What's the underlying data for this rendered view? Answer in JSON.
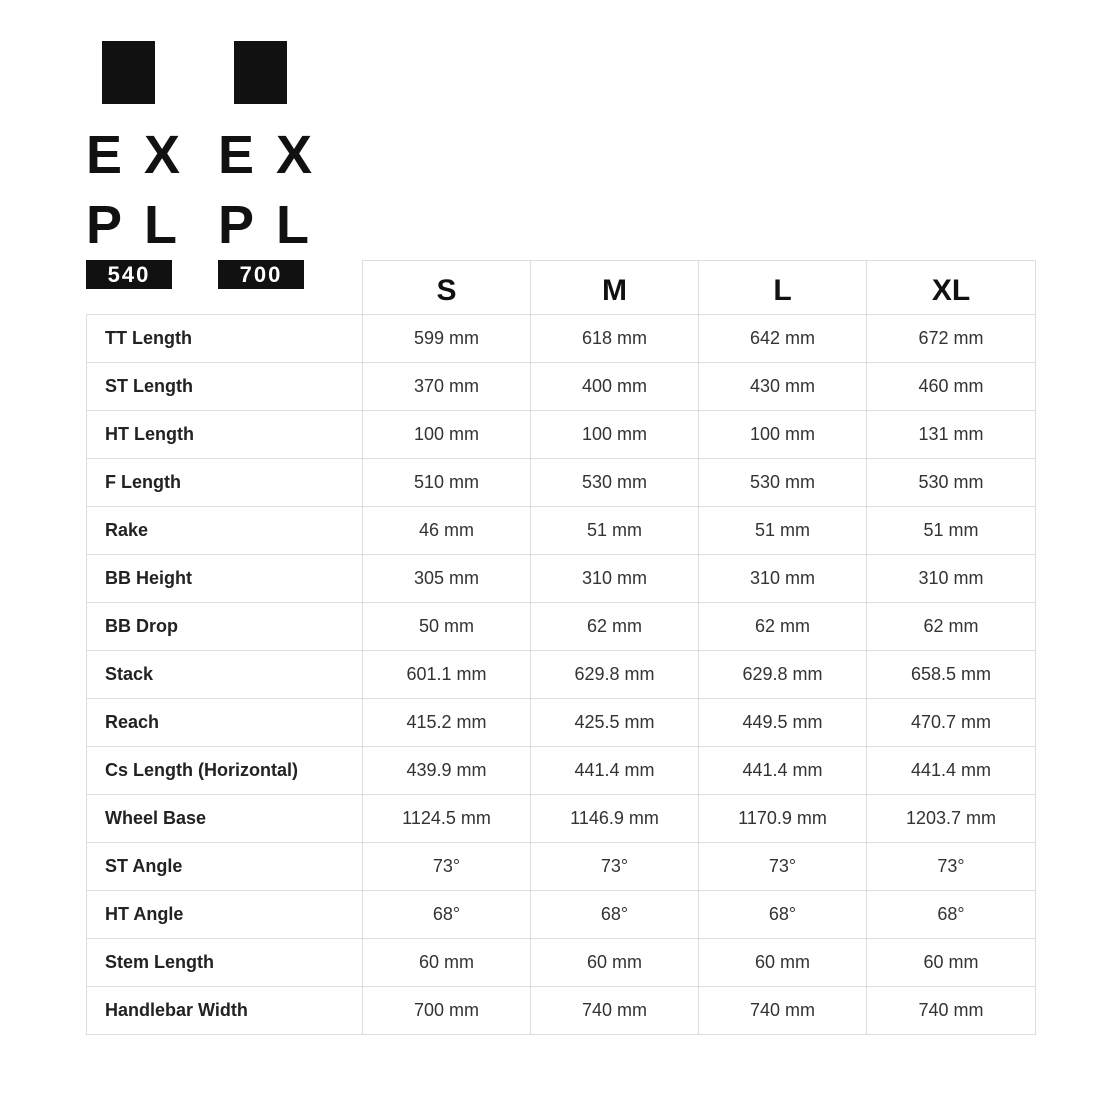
{
  "logos": [
    {
      "line1": "EX",
      "line2": "PL",
      "model": "540"
    },
    {
      "line1": "EX",
      "line2": "PL",
      "model": "700"
    }
  ],
  "table": {
    "columns": [
      "S",
      "M",
      "L",
      "XL"
    ],
    "rows": [
      [
        "TT Length",
        "599 mm",
        "618 mm",
        "642 mm",
        "672 mm"
      ],
      [
        "ST Length",
        "370 mm",
        "400 mm",
        "430 mm",
        "460 mm"
      ],
      [
        "HT Length",
        "100 mm",
        "100 mm",
        "100 mm",
        "131 mm"
      ],
      [
        "F Length",
        "510 mm",
        "530 mm",
        "530 mm",
        "530 mm"
      ],
      [
        "Rake",
        "46 mm",
        "51 mm",
        "51 mm",
        "51 mm"
      ],
      [
        "BB Height",
        "305 mm",
        "310 mm",
        "310 mm",
        "310 mm"
      ],
      [
        "BB Drop",
        "50 mm",
        "62 mm",
        "62 mm",
        "62 mm"
      ],
      [
        "Stack",
        "601.1 mm",
        "629.8 mm",
        "629.8 mm",
        "658.5 mm"
      ],
      [
        "Reach",
        "415.2 mm",
        "425.5 mm",
        "449.5 mm",
        "470.7 mm"
      ],
      [
        "Cs Length (Horizontal)",
        "439.9 mm",
        "441.4 mm",
        "441.4 mm",
        "441.4 mm"
      ],
      [
        "Wheel Base",
        "1124.5 mm",
        "1146.9 mm",
        "1170.9 mm",
        "1203.7 mm"
      ],
      [
        "ST Angle",
        "73°",
        "73°",
        "73°",
        "73°"
      ],
      [
        "HT Angle",
        "68°",
        "68°",
        "68°",
        "68°"
      ],
      [
        "Stem Length",
        "60 mm",
        "60 mm",
        "60 mm",
        "60 mm"
      ],
      [
        "Handlebar Width",
        "700 mm",
        "740 mm",
        "740 mm",
        "740 mm"
      ]
    ]
  }
}
